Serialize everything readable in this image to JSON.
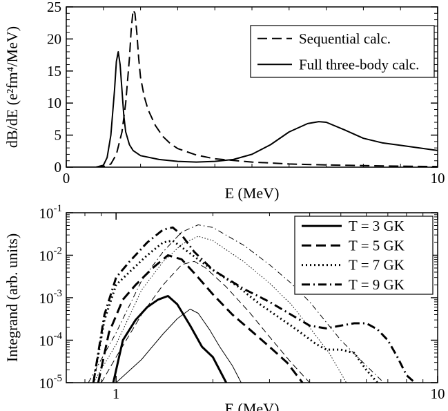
{
  "chart_data": [
    {
      "type": "line",
      "xlabel": "E (MeV)",
      "ylabel": "dB/dE (e²fm⁴/MeV)",
      "xlim": [
        0,
        10
      ],
      "ylim": [
        0,
        25
      ],
      "x_scale": "linear",
      "y_scale": "linear",
      "xticks": [
        0,
        10
      ],
      "xtick_labels": [
        "0",
        "10"
      ],
      "yticks": [
        0,
        5,
        10,
        15,
        20,
        25
      ],
      "ytick_labels": [
        "0",
        "5",
        "10",
        "15",
        "20",
        "25"
      ],
      "grid": false,
      "legend_position": "top-right",
      "series": [
        {
          "name": "Sequential calc.",
          "style": "dashed",
          "x": [
            0,
            0.8,
            1.0,
            1.2,
            1.35,
            1.5,
            1.6,
            1.7,
            1.75,
            1.8,
            1.85,
            1.9,
            1.95,
            2.0,
            2.1,
            2.2,
            2.4,
            2.6,
            2.8,
            3.0,
            3.5,
            4.0,
            5.0,
            6.0,
            7.0,
            8.0,
            9.0,
            10.0
          ],
          "y": [
            0,
            0,
            0.1,
            0.5,
            2.0,
            5.5,
            10.0,
            17.0,
            21.5,
            24.5,
            24.0,
            21.0,
            17.0,
            14.0,
            11.0,
            9.0,
            6.5,
            4.8,
            3.7,
            2.9,
            1.9,
            1.3,
            0.8,
            0.5,
            0.35,
            0.25,
            0.15,
            0.1
          ]
        },
        {
          "name": "Full three-body calc.",
          "style": "solid",
          "x": [
            0,
            0.8,
            1.0,
            1.1,
            1.2,
            1.3,
            1.35,
            1.4,
            1.45,
            1.5,
            1.55,
            1.6,
            1.7,
            1.8,
            2.0,
            2.5,
            3.0,
            3.5,
            4.0,
            4.5,
            5.0,
            5.5,
            6.0,
            6.5,
            6.8,
            7.0,
            7.5,
            8.0,
            8.5,
            9.0,
            10.0
          ],
          "y": [
            0,
            0,
            0.3,
            1.5,
            5.0,
            12.0,
            16.5,
            18.0,
            16.0,
            12.0,
            8.0,
            5.5,
            3.5,
            2.6,
            1.8,
            1.2,
            0.9,
            0.8,
            0.9,
            1.2,
            2.0,
            3.5,
            5.5,
            6.8,
            7.1,
            7.0,
            5.8,
            4.5,
            3.8,
            3.4,
            2.6
          ]
        }
      ]
    },
    {
      "type": "line",
      "xlabel": "E (MeV)",
      "ylabel": "Integrand (arb. units)",
      "xlim": [
        0.7,
        10
      ],
      "ylim": [
        1e-05,
        0.1
      ],
      "x_scale": "log",
      "y_scale": "log",
      "xticks": [
        1,
        10
      ],
      "xtick_labels": [
        "1",
        "10"
      ],
      "yticks": [
        1e-05,
        0.0001,
        0.001,
        0.01,
        0.1
      ],
      "ytick_labels": [
        {
          "base": "10",
          "exp": "-5"
        },
        {
          "base": "10",
          "exp": "-4"
        },
        {
          "base": "10",
          "exp": "-3"
        },
        {
          "base": "10",
          "exp": "-2"
        },
        {
          "base": "10",
          "exp": "-1"
        }
      ],
      "grid": false,
      "legend_position": "top-right",
      "series": [
        {
          "name": "T = 3 GK",
          "style": "solid",
          "weight": "thick",
          "x": [
            0.98,
            1.05,
            1.15,
            1.25,
            1.35,
            1.45,
            1.55,
            1.7,
            1.85,
            2.0,
            2.2
          ],
          "y": [
            1e-05,
            0.0001,
            0.0003,
            0.0006,
            0.0009,
            0.0011,
            0.0007,
            0.00022,
            7e-05,
            4e-05,
            1e-05
          ]
        },
        {
          "name": "T = 5 GK",
          "style": "dashed",
          "weight": "thick",
          "x": [
            0.88,
            0.95,
            1.05,
            1.15,
            1.3,
            1.45,
            1.6,
            1.8,
            2.0,
            2.3,
            2.6,
            3.0,
            3.4,
            3.8
          ],
          "y": [
            1e-05,
            0.00015,
            0.0009,
            0.002,
            0.005,
            0.01,
            0.008,
            0.003,
            0.0012,
            0.0004,
            0.00018,
            7e-05,
            3e-05,
            1e-05
          ]
        },
        {
          "name": "T = 7 GK",
          "style": "dotted",
          "weight": "thick",
          "x": [
            0.85,
            0.92,
            1.0,
            1.1,
            1.25,
            1.4,
            1.5,
            1.7,
            2.0,
            2.4,
            2.8,
            3.5,
            4.2,
            4.5,
            5.0,
            5.5,
            6.0,
            6.5
          ],
          "y": [
            1e-05,
            0.0003,
            0.002,
            0.004,
            0.01,
            0.02,
            0.022,
            0.011,
            0.0045,
            0.0018,
            0.0007,
            0.00022,
            8e-05,
            6e-05,
            6e-05,
            5e-05,
            2e-05,
            1e-05
          ]
        },
        {
          "name": "T = 9 GK",
          "style": "dashdot",
          "weight": "thick",
          "x": [
            0.85,
            0.92,
            1.0,
            1.1,
            1.25,
            1.4,
            1.5,
            1.6,
            1.75,
            2.0,
            2.5,
            3.0,
            3.5,
            4.0,
            4.5,
            5.0,
            5.5,
            6.0,
            6.5,
            7.0,
            7.5,
            8.0,
            8.5
          ],
          "y": [
            1e-05,
            0.0004,
            0.003,
            0.007,
            0.02,
            0.04,
            0.045,
            0.03,
            0.012,
            0.0045,
            0.0016,
            0.0008,
            0.0004,
            0.00022,
            0.00019,
            0.00022,
            0.00025,
            0.00025,
            0.00018,
            0.0001,
            4e-05,
            1.5e-05,
            1e-05
          ]
        },
        {
          "style": "solid",
          "weight": "thin",
          "x": [
            1.0,
            1.2,
            1.4,
            1.55,
            1.7,
            1.8,
            1.95,
            2.1,
            2.3,
            2.45
          ],
          "y": [
            1e-05,
            3.5e-05,
            0.00014,
            0.00032,
            0.00054,
            0.00043,
            0.00018,
            7e-05,
            2.5e-05,
            1e-05
          ]
        },
        {
          "style": "dashed",
          "weight": "thin",
          "x": [
            0.9,
            1.0,
            1.2,
            1.4,
            1.6,
            1.75,
            1.9,
            2.2,
            2.6,
            3.0,
            3.5,
            4.0
          ],
          "y": [
            1e-05,
            4e-05,
            0.0004,
            0.002,
            0.006,
            0.0072,
            0.005,
            0.0018,
            0.00045,
            0.00012,
            3e-05,
            1e-05
          ]
        },
        {
          "style": "dotted",
          "weight": "thin",
          "x": [
            0.85,
            1.0,
            1.2,
            1.4,
            1.6,
            1.8,
            2.0,
            2.5,
            3.0,
            3.5,
            4.0,
            4.6,
            5.2
          ],
          "y": [
            1e-05,
            8e-05,
            0.0015,
            0.007,
            0.018,
            0.028,
            0.022,
            0.007,
            0.0022,
            0.0007,
            0.0002,
            5e-05,
            1e-05
          ]
        },
        {
          "style": "dashdot",
          "weight": "thin",
          "x": [
            0.82,
            1.0,
            1.2,
            1.4,
            1.6,
            1.8,
            2.0,
            2.5,
            3.0,
            3.5,
            4.0,
            5.0,
            6.0,
            6.8
          ],
          "y": [
            1e-05,
            0.00015,
            0.0025,
            0.012,
            0.035,
            0.052,
            0.045,
            0.017,
            0.006,
            0.0022,
            0.0008,
            0.0001,
            2.5e-05,
            1e-05
          ]
        }
      ]
    }
  ]
}
